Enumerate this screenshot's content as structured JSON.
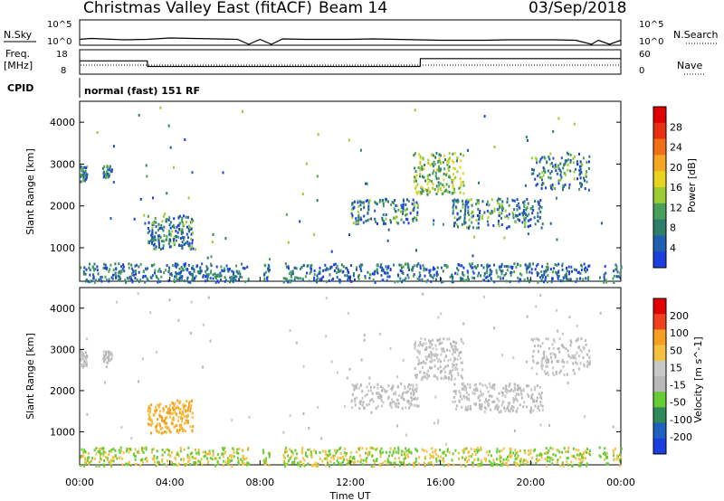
{
  "header": {
    "title": "Christmas Valley East (fitACF)",
    "beam": "Beam 14",
    "date": "03/Sep/2018",
    "cpid_value": "normal (fast) 151 RF"
  },
  "side_labels": {
    "nsky": "N.Sky",
    "nsky_tick_high": "10^5",
    "nsky_tick_low": "10^0",
    "nsearch": "N.Search",
    "nsearch_tick_high": "10^5",
    "nsearch_tick_low": "10^0",
    "freq": "Freq.",
    "freq_unit": "[MHz]",
    "freq_tick_high": "18",
    "freq_tick_low": "8",
    "nave": "Nave",
    "nave_tick_high": "60",
    "nave_tick_low": "0",
    "cpid": "CPID"
  },
  "colors": {
    "power_scale": [
      "#1a3fe0",
      "#1f5fb0",
      "#2e7f6a",
      "#4aa05a",
      "#9acd32",
      "#e8d41f",
      "#f5a623",
      "#f07018",
      "#e83010",
      "#e00000"
    ],
    "velocity_scale": [
      "#e00000",
      "#f04020",
      "#f5a020",
      "#f5c040",
      "#c8c8c8",
      "#b8b8b8",
      "#66cc33",
      "#2e8b57",
      "#2060c0",
      "#1a3fe0"
    ]
  },
  "chart_data": [
    {
      "type": "line",
      "title": "N.Sky / N.Search",
      "ylim_log": [
        0,
        5
      ],
      "x_range_hours": [
        0,
        24
      ],
      "series": [
        {
          "name": "N.Sky",
          "x": [
            0,
            0.5,
            1,
            1.5,
            2,
            3,
            4,
            5,
            6,
            7,
            7.5,
            8,
            8.5,
            9,
            10,
            11,
            12,
            13,
            14,
            15,
            16,
            17,
            18,
            19,
            20,
            21,
            22,
            22.7,
            23,
            23.5,
            24
          ],
          "values": [
            1.1,
            1.3,
            1.2,
            1.1,
            1.0,
            1.1,
            1.4,
            1.3,
            1.2,
            1.1,
            0.0,
            1.1,
            0.0,
            1.2,
            1.1,
            1.1,
            1.1,
            1.2,
            1.1,
            1.0,
            0.9,
            0.9,
            0.9,
            1.0,
            1.0,
            1.0,
            0.9,
            0.0,
            0.9,
            0.0,
            0.9
          ]
        }
      ]
    },
    {
      "type": "line",
      "title": "Freq. / Nave",
      "ylim": [
        8,
        18
      ],
      "x_range_hours": [
        0,
        24
      ],
      "series": [
        {
          "name": "Freq.",
          "x": [
            0,
            3,
            3.01,
            15.1,
            15.11,
            23,
            24
          ],
          "values": [
            13.5,
            13.5,
            11.0,
            11.0,
            14.5,
            14.5,
            14.5
          ]
        }
      ]
    },
    {
      "type": "heatmap",
      "ylabel": "Slant Range [km]",
      "xlabel": "",
      "x_ticks": [
        "00:00",
        "04:00",
        "08:00",
        "12:00",
        "16:00",
        "20:00",
        "00:00"
      ],
      "y_ticks": [
        "1000",
        "2000",
        "3000",
        "4000"
      ],
      "ylim": [
        200,
        4500
      ],
      "colorbar_label": "Power [dB]",
      "colorbar_ticks": [
        "4",
        "8",
        "12",
        "16",
        "20",
        "24",
        "28"
      ]
    },
    {
      "type": "heatmap",
      "ylabel": "Slant Range [km]",
      "xlabel": "Time UT",
      "x_ticks": [
        "00:00",
        "04:00",
        "08:00",
        "12:00",
        "16:00",
        "20:00",
        "00:00"
      ],
      "y_ticks": [
        "1000",
        "2000",
        "3000",
        "4000"
      ],
      "ylim": [
        200,
        4500
      ],
      "colorbar_label": "Velocity [m s^-1]",
      "colorbar_ticks": [
        "200",
        "100",
        "50",
        "15",
        "-15",
        "-50",
        "-100",
        "-200"
      ]
    }
  ]
}
